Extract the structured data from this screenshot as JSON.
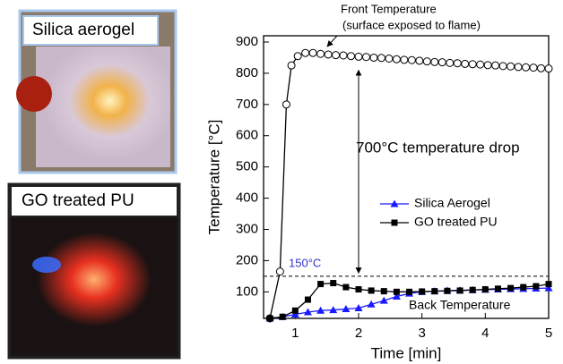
{
  "panels": [
    {
      "label": "Silica aerogel"
    },
    {
      "label": "GO treated PU"
    }
  ],
  "chart_data": {
    "type": "line",
    "x_label": "Time [min]",
    "y_label": "Temperature [°C]",
    "xlim": [
      0.5,
      5
    ],
    "xticks": [
      1,
      2,
      3,
      4,
      5
    ],
    "ylim": [
      15,
      920
    ],
    "yticks": [
      100,
      200,
      300,
      400,
      500,
      600,
      700,
      800,
      900
    ],
    "grid": false,
    "legend_position": "center-right",
    "series": [
      {
        "color": "#000000",
        "marker": "open-circle",
        "x": [
          0.6,
          0.76,
          0.86,
          0.94,
          1.04,
          1.16,
          1.28,
          1.4,
          1.52,
          1.64,
          1.76,
          1.88,
          2.0,
          2.12,
          2.24,
          2.36,
          2.48,
          2.6,
          2.72,
          2.84,
          2.96,
          3.08,
          3.2,
          3.32,
          3.44,
          3.56,
          3.68,
          3.8,
          3.92,
          4.04,
          4.16,
          4.28,
          4.4,
          4.52,
          4.64,
          4.76,
          4.88,
          5.0
        ],
        "values": [
          15,
          165,
          700,
          825,
          855,
          865,
          865,
          862,
          860,
          858,
          857,
          855,
          853,
          852,
          850,
          849,
          847,
          845,
          843,
          842,
          840,
          838,
          836,
          835,
          833,
          832,
          830,
          829,
          828,
          826,
          825,
          823,
          822,
          820,
          819,
          818,
          816,
          815
        ]
      },
      {
        "name": "Silica Aerogel",
        "color": "#1a1aff",
        "marker": "triangle",
        "x": [
          0.6,
          0.8,
          1.0,
          1.2,
          1.4,
          1.6,
          1.8,
          2.0,
          2.2,
          2.4,
          2.6,
          2.8,
          3.0,
          3.2,
          3.4,
          3.6,
          3.8,
          4.0,
          4.2,
          4.4,
          4.6,
          4.8,
          5.0
        ],
        "values": [
          15,
          20,
          28,
          35,
          40,
          42,
          45,
          48,
          60,
          72,
          85,
          95,
          100,
          102,
          104,
          105,
          106,
          107,
          108,
          109,
          110,
          111,
          112
        ]
      },
      {
        "name": "GO treated PU",
        "color": "#000000",
        "marker": "square",
        "x": [
          0.6,
          0.8,
          1.0,
          1.2,
          1.4,
          1.6,
          1.8,
          2.0,
          2.2,
          2.4,
          2.6,
          2.8,
          3.0,
          3.2,
          3.4,
          3.6,
          3.8,
          4.0,
          4.2,
          4.4,
          4.6,
          4.8,
          5.0
        ],
        "values": [
          15,
          20,
          40,
          75,
          125,
          128,
          115,
          108,
          104,
          102,
          100,
          100,
          101,
          102,
          103,
          104,
          106,
          108,
          110,
          112,
          115,
          118,
          125
        ]
      }
    ],
    "reference_line": {
      "value": 150,
      "label": "150°C",
      "color": "#3333cc"
    },
    "drop_arrow": {
      "x": 2,
      "from": 160,
      "to": 810
    },
    "annotations": [
      "Front Temperature",
      "(surface exposed to flame)",
      "700°C temperature drop",
      "Back Temperature"
    ]
  }
}
